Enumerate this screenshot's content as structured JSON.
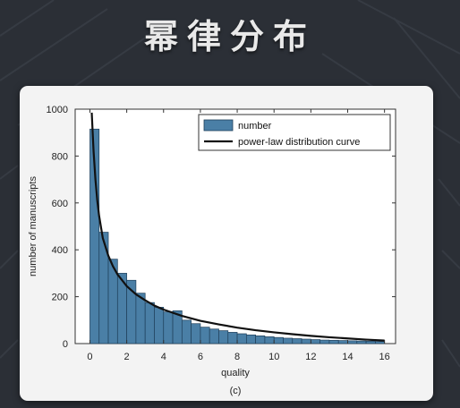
{
  "slide": {
    "title": "幂律分布"
  },
  "colors": {
    "background": "#2b2f36",
    "bar_fill": "#4a7fa6",
    "bar_stroke": "#1f3f5a",
    "curve": "#111111",
    "card": "#f3f3f3"
  },
  "chart_data": {
    "type": "bar",
    "title": "",
    "xlabel": "quality",
    "ylabel": "number of manuscripts",
    "caption": "(c)",
    "xlim": [
      -0.8,
      16.6
    ],
    "ylim": [
      0,
      1000
    ],
    "x_ticks": [
      0,
      2,
      4,
      6,
      8,
      10,
      12,
      14,
      16
    ],
    "y_ticks": [
      0,
      200,
      400,
      600,
      800,
      1000
    ],
    "grid": false,
    "legend_position": "top-right",
    "bin_width": 0.5,
    "series": [
      {
        "name": "number",
        "kind": "bar",
        "x": [
          0.25,
          0.75,
          1.25,
          1.75,
          2.25,
          2.75,
          3.25,
          3.75,
          4.25,
          4.75,
          5.25,
          5.75,
          6.25,
          6.75,
          7.25,
          7.75,
          8.25,
          8.75,
          9.25,
          9.75,
          10.25,
          10.75,
          11.25,
          11.75,
          12.25,
          12.75,
          13.25,
          13.75,
          14.25,
          14.75,
          15.25,
          15.75
        ],
        "values": [
          915,
          475,
          360,
          300,
          270,
          215,
          175,
          155,
          135,
          140,
          100,
          85,
          70,
          62,
          55,
          48,
          42,
          37,
          33,
          29,
          26,
          23,
          21,
          19,
          17,
          15,
          14,
          13,
          12,
          11,
          10,
          9
        ]
      },
      {
        "name": "power-law distribution curve",
        "kind": "line",
        "x": [
          0.1,
          0.15,
          0.2,
          0.3,
          0.4,
          0.5,
          0.7,
          1.0,
          1.25,
          1.5,
          2.0,
          2.5,
          3.0,
          3.5,
          4.0,
          5.0,
          6.0,
          7.0,
          8.0,
          9.0,
          10.0,
          11.0,
          12.0,
          13.0,
          14.0,
          15.0,
          16.0
        ],
        "values": [
          985,
          900,
          820,
          700,
          610,
          545,
          450,
          375,
          330,
          295,
          245,
          210,
          185,
          162,
          145,
          118,
          97,
          82,
          68,
          57,
          48,
          40,
          33,
          27,
          22,
          17,
          13
        ]
      }
    ]
  }
}
